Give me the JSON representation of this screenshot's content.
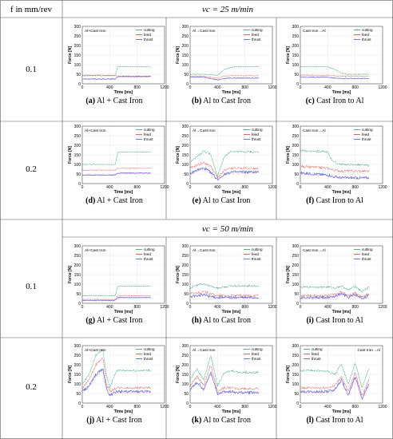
{
  "header": {
    "row_header": "f in mm/rev",
    "speed_1": "vc = 25 m/min",
    "speed_2": "vc = 50 m/min"
  },
  "row_labels": [
    "0.1",
    "0.2",
    "0.1",
    "0.2"
  ],
  "axes": {
    "xlabel": "Time [ms]",
    "ylabel": "Force [N]",
    "xticks": [
      0,
      400,
      800,
      1200
    ],
    "yticks": [
      0,
      50,
      100,
      150,
      200,
      250,
      300
    ]
  },
  "legend": [
    "cutting",
    "feed",
    "thrust"
  ],
  "colors": {
    "cutting": "#2e9e6e",
    "feed": "#d94040",
    "thrust": "#4060d0",
    "pink": "#e060c0"
  },
  "chart_data": [
    {
      "type": "line",
      "id": "a",
      "caption_letter": "(a)",
      "caption_text": "Al + Cast Iron",
      "inset": "Al+Cast Iron",
      "inset_pos": "top-left",
      "legend_pos": "top-right",
      "xlim": [
        0,
        1200
      ],
      "ylim": [
        0,
        300
      ],
      "series": [
        {
          "name": "cutting",
          "x": [
            0,
            200,
            480,
            520,
            700,
            1000
          ],
          "y": [
            45,
            45,
            45,
            90,
            90,
            88
          ]
        },
        {
          "name": "feed",
          "x": [
            0,
            200,
            480,
            520,
            700,
            1000
          ],
          "y": [
            42,
            42,
            42,
            40,
            40,
            40
          ]
        },
        {
          "name": "thrust",
          "x": [
            0,
            200,
            480,
            520,
            700,
            1000
          ],
          "y": [
            25,
            25,
            25,
            38,
            38,
            38
          ]
        }
      ]
    },
    {
      "type": "line",
      "id": "b",
      "caption_letter": "(b)",
      "caption_text": "Al to Cast Iron",
      "inset": "Al→Cast Iron",
      "inset_pos": "top-left",
      "legend_pos": "top-right",
      "xlim": [
        0,
        1200
      ],
      "ylim": [
        0,
        300
      ],
      "series": [
        {
          "name": "cutting",
          "x": [
            0,
            200,
            400,
            500,
            600,
            700,
            1000
          ],
          "y": [
            50,
            50,
            45,
            75,
            85,
            90,
            90
          ]
        },
        {
          "name": "feed",
          "x": [
            0,
            200,
            400,
            500,
            600,
            700,
            1000
          ],
          "y": [
            40,
            40,
            30,
            40,
            42,
            42,
            42
          ]
        },
        {
          "name": "thrust",
          "x": [
            0,
            200,
            400,
            500,
            600,
            700,
            1000
          ],
          "y": [
            35,
            35,
            20,
            28,
            30,
            30,
            30
          ]
        }
      ]
    },
    {
      "type": "line",
      "id": "c",
      "caption_letter": "(c)",
      "caption_text": "Cast Iron to Al",
      "inset": "Cast Iron→Al",
      "inset_pos": "top-left",
      "legend_pos": "top-right",
      "xlim": [
        0,
        1200
      ],
      "ylim": [
        0,
        300
      ],
      "series": [
        {
          "name": "cutting",
          "x": [
            0,
            200,
            400,
            500,
            600,
            700,
            1000
          ],
          "y": [
            90,
            90,
            88,
            75,
            55,
            50,
            50
          ]
        },
        {
          "name": "feed",
          "x": [
            0,
            200,
            400,
            500,
            600,
            700,
            1000
          ],
          "y": [
            45,
            45,
            45,
            42,
            40,
            40,
            40
          ]
        },
        {
          "name": "thrust",
          "x": [
            0,
            200,
            400,
            500,
            600,
            700,
            1000
          ],
          "y": [
            35,
            35,
            35,
            30,
            28,
            28,
            28
          ]
        }
      ]
    },
    {
      "type": "line",
      "id": "d",
      "caption_letter": "(d)",
      "caption_text": "Al + Cast Iron",
      "inset": "Al+Cast Iron",
      "inset_pos": "top-left",
      "legend_pos": "top-right",
      "xlim": [
        0,
        1200
      ],
      "ylim": [
        0,
        300
      ],
      "series": [
        {
          "name": "cutting",
          "x": [
            0,
            200,
            480,
            520,
            700,
            1000
          ],
          "y": [
            100,
            100,
            100,
            165,
            165,
            165
          ]
        },
        {
          "name": "feed",
          "x": [
            0,
            200,
            480,
            520,
            700,
            1000
          ],
          "y": [
            70,
            70,
            70,
            80,
            80,
            80
          ]
        },
        {
          "name": "thrust",
          "x": [
            0,
            200,
            480,
            520,
            700,
            1000
          ],
          "y": [
            45,
            45,
            45,
            55,
            55,
            55
          ]
        }
      ]
    },
    {
      "type": "line",
      "id": "e",
      "caption_letter": "(e)",
      "caption_text": "Al to Cast Iron",
      "inset": "Al→Cast Iron",
      "inset_pos": "top-left",
      "legend_pos": "top-right",
      "xlim": [
        0,
        1200
      ],
      "ylim": [
        0,
        300
      ],
      "series": [
        {
          "name": "cutting",
          "x": [
            0,
            100,
            200,
            300,
            400,
            500,
            600,
            700,
            1000
          ],
          "y": [
            110,
            140,
            170,
            150,
            40,
            140,
            170,
            165,
            165
          ]
        },
        {
          "name": "feed",
          "x": [
            0,
            100,
            200,
            300,
            400,
            500,
            600,
            700,
            1000
          ],
          "y": [
            80,
            95,
            110,
            90,
            30,
            70,
            80,
            80,
            80
          ]
        },
        {
          "name": "thrust",
          "x": [
            0,
            100,
            200,
            300,
            400,
            500,
            600,
            700,
            1000
          ],
          "y": [
            50,
            70,
            80,
            60,
            20,
            50,
            60,
            60,
            60
          ]
        }
      ]
    },
    {
      "type": "line",
      "id": "f",
      "caption_letter": "(f)",
      "caption_text": "Cast Iron to Al",
      "inset": "Cast Iron→Al",
      "inset_pos": "top-left",
      "legend_pos": "top-right",
      "xlim": [
        0,
        1200
      ],
      "ylim": [
        0,
        300
      ],
      "series": [
        {
          "name": "cutting",
          "x": [
            0,
            200,
            400,
            450,
            500,
            600,
            700,
            1000
          ],
          "y": [
            170,
            170,
            165,
            130,
            110,
            100,
            100,
            95
          ]
        },
        {
          "name": "feed",
          "x": [
            0,
            200,
            400,
            450,
            500,
            600,
            700,
            1000
          ],
          "y": [
            90,
            85,
            80,
            75,
            70,
            65,
            65,
            65
          ]
        },
        {
          "name": "thrust",
          "x": [
            0,
            200,
            400,
            450,
            500,
            600,
            700,
            1000
          ],
          "y": [
            55,
            50,
            45,
            40,
            35,
            30,
            30,
            30
          ]
        }
      ]
    },
    {
      "type": "line",
      "id": "g",
      "caption_letter": "(g)",
      "caption_text": "Al + Cast Iron",
      "inset": "Al+Cast Iron",
      "inset_pos": "top-left",
      "legend_pos": "top-right",
      "xlim": [
        0,
        1200
      ],
      "ylim": [
        0,
        300
      ],
      "series": [
        {
          "name": "cutting",
          "x": [
            0,
            200,
            480,
            520,
            700,
            1000
          ],
          "y": [
            40,
            40,
            40,
            90,
            90,
            90
          ]
        },
        {
          "name": "feed",
          "x": [
            0,
            200,
            480,
            520,
            700,
            1000
          ],
          "y": [
            20,
            20,
            20,
            40,
            40,
            40
          ]
        },
        {
          "name": "thrust",
          "x": [
            0,
            200,
            480,
            520,
            700,
            1000
          ],
          "y": [
            15,
            15,
            15,
            30,
            30,
            30
          ]
        }
      ]
    },
    {
      "type": "line",
      "id": "h",
      "caption_letter": "(h)",
      "caption_text": "Al to Cast Iron",
      "inset": "Al→Cast Iron",
      "inset_pos": "top-left",
      "legend_pos": "top-right",
      "xlim": [
        0,
        1200
      ],
      "ylim": [
        0,
        300
      ],
      "series": [
        {
          "name": "cutting",
          "x": [
            0,
            100,
            200,
            300,
            400,
            500,
            600,
            700,
            1000
          ],
          "y": [
            80,
            95,
            100,
            90,
            80,
            85,
            90,
            90,
            90
          ]
        },
        {
          "name": "feed",
          "x": [
            0,
            100,
            200,
            300,
            400,
            500,
            600,
            700,
            1000
          ],
          "y": [
            50,
            55,
            60,
            50,
            40,
            40,
            40,
            40,
            40
          ]
        },
        {
          "name": "thrust",
          "x": [
            0,
            100,
            200,
            300,
            400,
            500,
            600,
            700,
            1000
          ],
          "y": [
            35,
            40,
            45,
            35,
            30,
            30,
            30,
            30,
            30
          ]
        }
      ]
    },
    {
      "type": "line",
      "id": "i",
      "caption_letter": "(i)",
      "caption_text": "Cast Iron to Al",
      "inset": "Cast Iron→Al",
      "inset_pos": "top-left",
      "legend_pos": "top-right",
      "xlim": [
        0,
        1200
      ],
      "ylim": [
        0,
        300
      ],
      "series": [
        {
          "name": "cutting",
          "x": [
            0,
            200,
            400,
            500,
            600,
            700,
            800,
            900,
            1000
          ],
          "y": [
            85,
            85,
            85,
            80,
            90,
            70,
            90,
            60,
            85
          ]
        },
        {
          "name": "feed",
          "x": [
            0,
            200,
            400,
            500,
            600,
            700,
            800,
            900,
            1000
          ],
          "y": [
            40,
            40,
            40,
            45,
            60,
            40,
            55,
            35,
            50
          ]
        },
        {
          "name": "thrust",
          "x": [
            0,
            200,
            400,
            500,
            600,
            700,
            800,
            900,
            1000
          ],
          "y": [
            30,
            30,
            30,
            35,
            50,
            30,
            45,
            25,
            40
          ]
        }
      ]
    },
    {
      "type": "line",
      "id": "j",
      "caption_letter": "(j)",
      "caption_text": "Al + Cast Iron",
      "inset": "Al+Cast Iron",
      "inset_pos": "top-left",
      "legend_pos": "top-right",
      "xlim": [
        0,
        1200
      ],
      "ylim": [
        0,
        300
      ],
      "series": [
        {
          "name": "cutting",
          "x": [
            0,
            100,
            200,
            300,
            350,
            400,
            500,
            600,
            1000
          ],
          "y": [
            100,
            150,
            250,
            280,
            150,
            80,
            170,
            170,
            170
          ]
        },
        {
          "name": "feed",
          "x": [
            0,
            100,
            200,
            300,
            350,
            400,
            500,
            600,
            1000
          ],
          "y": [
            80,
            120,
            200,
            240,
            100,
            60,
            80,
            80,
            80
          ]
        },
        {
          "name": "thrust",
          "x": [
            0,
            100,
            200,
            300,
            350,
            400,
            500,
            600,
            1000
          ],
          "y": [
            60,
            90,
            150,
            180,
            80,
            40,
            60,
            60,
            60
          ]
        }
      ]
    },
    {
      "type": "line",
      "id": "k",
      "caption_letter": "(k)",
      "caption_text": "Al to Cast Iron",
      "inset": "Al→Cast Iron",
      "inset_pos": "top-left",
      "legend_pos": "top-right",
      "xlim": [
        0,
        1200
      ],
      "ylim": [
        0,
        300
      ],
      "series": [
        {
          "name": "cutting",
          "x": [
            0,
            100,
            200,
            300,
            400,
            500,
            600,
            700,
            1000
          ],
          "y": [
            120,
            180,
            120,
            250,
            90,
            160,
            170,
            160,
            160
          ]
        },
        {
          "name": "feed",
          "x": [
            0,
            100,
            200,
            300,
            400,
            500,
            600,
            700,
            1000
          ],
          "y": [
            90,
            140,
            90,
            200,
            60,
            80,
            80,
            75,
            75
          ]
        },
        {
          "name": "thrust",
          "x": [
            0,
            100,
            200,
            300,
            400,
            500,
            600,
            700,
            1000
          ],
          "y": [
            70,
            110,
            70,
            160,
            50,
            60,
            60,
            55,
            55
          ]
        }
      ]
    },
    {
      "type": "line",
      "id": "l",
      "caption_letter": "(l)",
      "caption_text": "Cast Iron to Al",
      "inset": "Cast Iron→Al",
      "inset_pos": "top-right",
      "legend_pos": "top-left",
      "xlim": [
        0,
        1200
      ],
      "ylim": [
        0,
        300
      ],
      "series": [
        {
          "name": "cutting",
          "x": [
            0,
            200,
            400,
            500,
            600,
            700,
            800,
            900,
            1000
          ],
          "y": [
            170,
            170,
            165,
            150,
            200,
            100,
            210,
            80,
            180
          ]
        },
        {
          "name": "feed",
          "x": [
            0,
            200,
            400,
            500,
            600,
            700,
            800,
            900,
            1000
          ],
          "y": [
            80,
            80,
            80,
            90,
            140,
            60,
            160,
            40,
            120
          ]
        },
        {
          "name": "thrust",
          "x": [
            0,
            200,
            400,
            500,
            600,
            700,
            800,
            900,
            1000
          ],
          "y": [
            60,
            60,
            60,
            70,
            120,
            40,
            140,
            20,
            100
          ]
        }
      ]
    }
  ]
}
